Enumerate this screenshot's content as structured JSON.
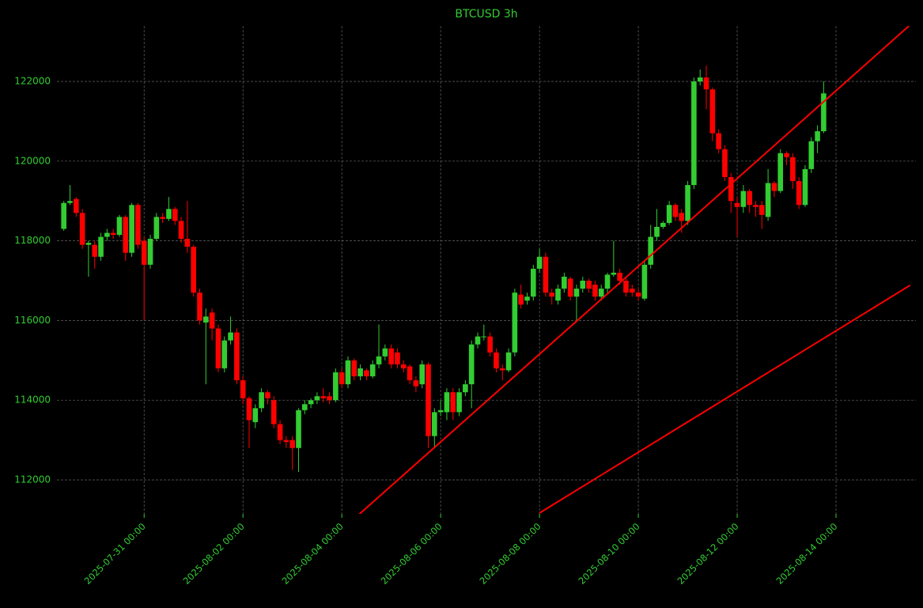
{
  "chart_data": {
    "type": "candlestick",
    "title": "BTCUSD 3h",
    "up_color": "#32cd32",
    "down_color": "#ff0000",
    "text_color": "#32cd32",
    "grid": true,
    "xlim": [
      "2025-07-29 05:40",
      "2025-08-15 14:47"
    ],
    "xticks": [
      "2025-07-31 00:00",
      "2025-08-02 00:00",
      "2025-08-04 00:00",
      "2025-08-06 00:00",
      "2025-08-08 00:00",
      "2025-08-10 00:00",
      "2025-08-12 00:00",
      "2025-08-14 00:00"
    ],
    "ylim": [
      111147,
      123389
    ],
    "yticks": [
      112000,
      114000,
      116000,
      118000,
      120000,
      122000
    ],
    "x": [
      "2025-07-29 09:00",
      "2025-07-29 12:00",
      "2025-07-29 15:00",
      "2025-07-29 18:00",
      "2025-07-29 21:00",
      "2025-07-30 00:00",
      "2025-07-30 03:00",
      "2025-07-30 06:00",
      "2025-07-30 09:00",
      "2025-07-30 12:00",
      "2025-07-30 15:00",
      "2025-07-30 18:00",
      "2025-07-30 21:00",
      "2025-07-31 00:00",
      "2025-07-31 03:00",
      "2025-07-31 06:00",
      "2025-07-31 09:00",
      "2025-07-31 12:00",
      "2025-07-31 15:00",
      "2025-07-31 18:00",
      "2025-07-31 21:00",
      "2025-08-01 00:00",
      "2025-08-01 03:00",
      "2025-08-01 06:00",
      "2025-08-01 09:00",
      "2025-08-01 12:00",
      "2025-08-01 15:00",
      "2025-08-01 18:00",
      "2025-08-01 21:00",
      "2025-08-02 00:00",
      "2025-08-02 03:00",
      "2025-08-02 06:00",
      "2025-08-02 09:00",
      "2025-08-02 12:00",
      "2025-08-02 15:00",
      "2025-08-02 18:00",
      "2025-08-02 21:00",
      "2025-08-03 00:00",
      "2025-08-03 03:00",
      "2025-08-03 06:00",
      "2025-08-03 09:00",
      "2025-08-03 12:00",
      "2025-08-03 15:00",
      "2025-08-03 18:00",
      "2025-08-03 21:00",
      "2025-08-04 00:00",
      "2025-08-04 03:00",
      "2025-08-04 06:00",
      "2025-08-04 09:00",
      "2025-08-04 12:00",
      "2025-08-04 15:00",
      "2025-08-04 18:00",
      "2025-08-04 21:00",
      "2025-08-05 00:00",
      "2025-08-05 03:00",
      "2025-08-05 06:00",
      "2025-08-05 09:00",
      "2025-08-05 12:00",
      "2025-08-05 15:00",
      "2025-08-05 18:00",
      "2025-08-05 21:00",
      "2025-08-06 00:00",
      "2025-08-06 03:00",
      "2025-08-06 06:00",
      "2025-08-06 09:00",
      "2025-08-06 12:00",
      "2025-08-06 15:00",
      "2025-08-06 18:00",
      "2025-08-06 21:00",
      "2025-08-07 00:00",
      "2025-08-07 03:00",
      "2025-08-07 06:00",
      "2025-08-07 09:00",
      "2025-08-07 12:00",
      "2025-08-07 15:00",
      "2025-08-07 18:00",
      "2025-08-07 21:00",
      "2025-08-08 00:00",
      "2025-08-08 03:00",
      "2025-08-08 06:00",
      "2025-08-08 09:00",
      "2025-08-08 12:00",
      "2025-08-08 15:00",
      "2025-08-08 18:00",
      "2025-08-08 21:00",
      "2025-08-09 00:00",
      "2025-08-09 03:00",
      "2025-08-09 06:00",
      "2025-08-09 09:00",
      "2025-08-09 12:00",
      "2025-08-09 15:00",
      "2025-08-09 18:00",
      "2025-08-09 21:00",
      "2025-08-10 00:00",
      "2025-08-10 03:00",
      "2025-08-10 06:00",
      "2025-08-10 09:00",
      "2025-08-10 12:00",
      "2025-08-10 15:00",
      "2025-08-10 18:00",
      "2025-08-10 21:00",
      "2025-08-11 00:00",
      "2025-08-11 03:00",
      "2025-08-11 06:00",
      "2025-08-11 09:00",
      "2025-08-11 12:00",
      "2025-08-11 15:00",
      "2025-08-11 18:00",
      "2025-08-11 21:00",
      "2025-08-12 00:00",
      "2025-08-12 03:00",
      "2025-08-12 06:00",
      "2025-08-12 09:00",
      "2025-08-12 12:00",
      "2025-08-12 15:00",
      "2025-08-12 18:00",
      "2025-08-12 21:00",
      "2025-08-13 00:00",
      "2025-08-13 03:00",
      "2025-08-13 06:00",
      "2025-08-13 09:00",
      "2025-08-13 12:00",
      "2025-08-13 15:00",
      "2025-08-13 18:00"
    ],
    "open": [
      118300,
      118950,
      119050,
      118700,
      117900,
      117900,
      117600,
      118100,
      118200,
      118150,
      118600,
      117700,
      118900,
      118000,
      117400,
      118050,
      118600,
      118550,
      118800,
      118500,
      118050,
      117850,
      116700,
      115950,
      116200,
      115800,
      114800,
      115500,
      115700,
      114500,
      114050,
      113450,
      113800,
      114200,
      114000,
      113400,
      113000,
      113000,
      112800,
      113750,
      113900,
      114000,
      114100,
      114100,
      114000,
      114700,
      114400,
      115000,
      114600,
      114750,
      114600,
      114900,
      115100,
      115300,
      115200,
      114900,
      114850,
      114500,
      114400,
      114900,
      113100,
      113700,
      113700,
      114200,
      113700,
      114200,
      114400,
      115400,
      115600,
      115600,
      115200,
      114800,
      114750,
      115200,
      116650,
      116500,
      116600,
      117300,
      117600,
      116700,
      116500,
      116800,
      117050,
      116600,
      116800,
      117000,
      116900,
      116600,
      116800,
      117150,
      117200,
      117000,
      116800,
      116700,
      116550,
      117400,
      118100,
      118350,
      118450,
      118900,
      118700,
      118500,
      119400,
      122000,
      122100,
      121800,
      120700,
      120300,
      119600,
      118950,
      118850,
      119250,
      118900,
      118900,
      118600,
      119450,
      119250,
      120200,
      120100,
      119500,
      118900,
      119800,
      120500,
      120750
    ],
    "high": [
      119000,
      119400,
      119100,
      118800,
      118000,
      118000,
      118200,
      118300,
      118300,
      118650,
      118650,
      118950,
      118950,
      118100,
      118150,
      118700,
      118700,
      119100,
      118850,
      118600,
      119000,
      117900,
      116800,
      116300,
      116300,
      115900,
      115600,
      116100,
      115800,
      114600,
      114100,
      113900,
      114300,
      114250,
      114100,
      113500,
      113100,
      113100,
      113800,
      114000,
      114050,
      114200,
      114300,
      114200,
      114800,
      114800,
      115100,
      115050,
      114900,
      114800,
      115000,
      115900,
      115400,
      115400,
      115300,
      115000,
      114900,
      114600,
      115000,
      114950,
      113800,
      114000,
      114300,
      114300,
      114300,
      114500,
      115500,
      115700,
      115900,
      115700,
      115300,
      114900,
      115300,
      116800,
      116900,
      116700,
      117400,
      117800,
      117700,
      116800,
      116900,
      117200,
      117100,
      116900,
      117100,
      117050,
      117000,
      116900,
      117200,
      118000,
      117300,
      117100,
      116900,
      116800,
      117500,
      118400,
      118800,
      118500,
      119000,
      118950,
      118800,
      119500,
      122100,
      122300,
      122400,
      121850,
      120800,
      120400,
      119700,
      119100,
      119400,
      119300,
      119000,
      119000,
      119800,
      119500,
      120300,
      120250,
      120200,
      119600,
      119900,
      120600,
      120900,
      122000
    ],
    "low": [
      118250,
      118900,
      118600,
      117800,
      117100,
      117300,
      117500,
      118000,
      118050,
      118100,
      117500,
      117600,
      117800,
      116000,
      117300,
      118000,
      118450,
      118500,
      118400,
      117950,
      117700,
      116600,
      115900,
      114400,
      115500,
      114700,
      114700,
      115400,
      114400,
      113900,
      112800,
      113300,
      113700,
      113900,
      113300,
      112900,
      112800,
      112250,
      112200,
      113650,
      113800,
      113900,
      113950,
      113900,
      113950,
      114300,
      114300,
      114500,
      114500,
      114500,
      114550,
      114800,
      115000,
      114800,
      114800,
      114700,
      114400,
      114200,
      114300,
      112800,
      112800,
      113600,
      113500,
      113500,
      113600,
      114100,
      113800,
      115300,
      115500,
      115100,
      114700,
      114500,
      114700,
      115100,
      116300,
      116400,
      116500,
      117200,
      116600,
      116400,
      116400,
      116700,
      116500,
      116000,
      116700,
      116700,
      116500,
      116500,
      116700,
      117100,
      116900,
      116600,
      116600,
      116500,
      116500,
      117300,
      118000,
      118300,
      118400,
      118500,
      118200,
      118400,
      119300,
      121900,
      121300,
      120500,
      120200,
      119500,
      118700,
      118100,
      118700,
      118700,
      118600,
      118300,
      118500,
      119100,
      119200,
      119900,
      119300,
      118800,
      118850,
      119700,
      120200,
      120700
    ],
    "close": [
      118950,
      119000,
      118700,
      117900,
      117950,
      117600,
      118100,
      118200,
      118150,
      118600,
      117700,
      118900,
      117900,
      117400,
      118050,
      118600,
      118550,
      118800,
      118500,
      118050,
      117850,
      116700,
      116000,
      116100,
      115800,
      114800,
      115500,
      115700,
      114500,
      114050,
      113500,
      113800,
      114200,
      114050,
      113400,
      113000,
      112950,
      112800,
      113750,
      113900,
      114000,
      114100,
      114050,
      114000,
      114700,
      114400,
      115000,
      114600,
      114800,
      114600,
      114900,
      115100,
      115300,
      114900,
      114900,
      114800,
      114500,
      114350,
      114900,
      113100,
      113700,
      113750,
      114200,
      113700,
      114200,
      114400,
      115400,
      115600,
      115600,
      115200,
      114800,
      114750,
      115200,
      116700,
      116400,
      116600,
      117300,
      117600,
      116700,
      116600,
      116800,
      117100,
      116600,
      116800,
      117000,
      116800,
      116600,
      116800,
      117150,
      117200,
      117000,
      116700,
      116700,
      116600,
      117400,
      118100,
      118350,
      118450,
      118900,
      118600,
      118500,
      119400,
      122000,
      122100,
      121800,
      120700,
      120300,
      119600,
      119000,
      118850,
      119250,
      118900,
      118850,
      118650,
      119450,
      119250,
      120200,
      120100,
      119500,
      118900,
      119800,
      120500,
      120750,
      121700
    ],
    "trend_lines": [
      {
        "color": "#ff0000",
        "x": [
          "2025-08-04 00:00",
          "2025-08-15 12:00"
        ],
        "y": [
          110750,
          123420
        ]
      },
      {
        "color": "#ff0000",
        "x": [
          "2025-08-08 00:00",
          "2025-08-15 12:00"
        ],
        "y": [
          111170,
          116885
        ]
      }
    ]
  }
}
